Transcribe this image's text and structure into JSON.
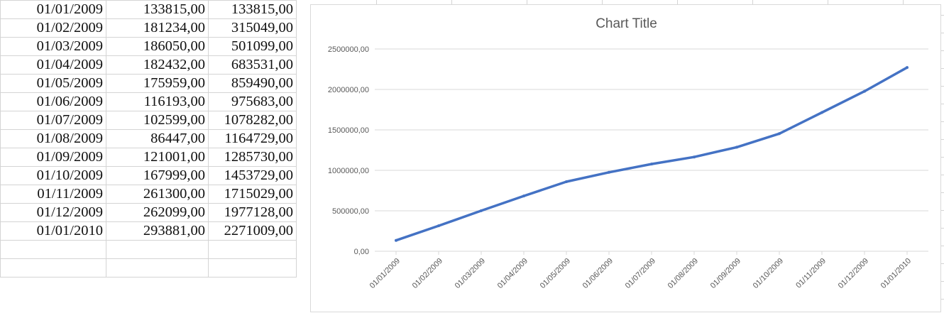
{
  "sheet": {
    "rows": [
      [
        "01/01/2009",
        "133815,00",
        "133815,00"
      ],
      [
        "01/02/2009",
        "181234,00",
        "315049,00"
      ],
      [
        "01/03/2009",
        "186050,00",
        "501099,00"
      ],
      [
        "01/04/2009",
        "182432,00",
        "683531,00"
      ],
      [
        "01/05/2009",
        "175959,00",
        "859490,00"
      ],
      [
        "01/06/2009",
        "116193,00",
        "975683,00"
      ],
      [
        "01/07/2009",
        "102599,00",
        "1078282,00"
      ],
      [
        "01/08/2009",
        "86447,00",
        "1164729,00"
      ],
      [
        "01/09/2009",
        "121001,00",
        "1285730,00"
      ],
      [
        "01/10/2009",
        "167999,00",
        "1453729,00"
      ],
      [
        "01/11/2009",
        "261300,00",
        "1715029,00"
      ],
      [
        "01/12/2009",
        "262099,00",
        "1977128,00"
      ],
      [
        "01/01/2010",
        "293881,00",
        "2271009,00"
      ]
    ]
  },
  "chart_data": {
    "type": "line",
    "title": "Chart Title",
    "xlabel": "",
    "ylabel": "",
    "categories": [
      "01/01/2009",
      "01/02/2009",
      "01/03/2009",
      "01/04/2009",
      "01/05/2009",
      "01/06/2009",
      "01/07/2009",
      "01/08/2009",
      "01/09/2009",
      "01/10/2009",
      "01/11/2009",
      "01/12/2009",
      "01/01/2010"
    ],
    "series": [
      {
        "values": [
          133815,
          315049,
          501099,
          683531,
          859490,
          975683,
          1078282,
          1164729,
          1285730,
          1453729,
          1715029,
          1977128,
          2271009
        ],
        "color": "#4472c4"
      }
    ],
    "ylim": [
      0,
      2500000
    ],
    "yticks": [
      0,
      500000,
      1000000,
      1500000,
      2000000,
      2500000
    ],
    "ytick_labels": [
      "0,00",
      "500000,00",
      "1000000,00",
      "1500000,00",
      "2000000,00",
      "2500000,00"
    ],
    "grid": true,
    "legend": "none"
  }
}
